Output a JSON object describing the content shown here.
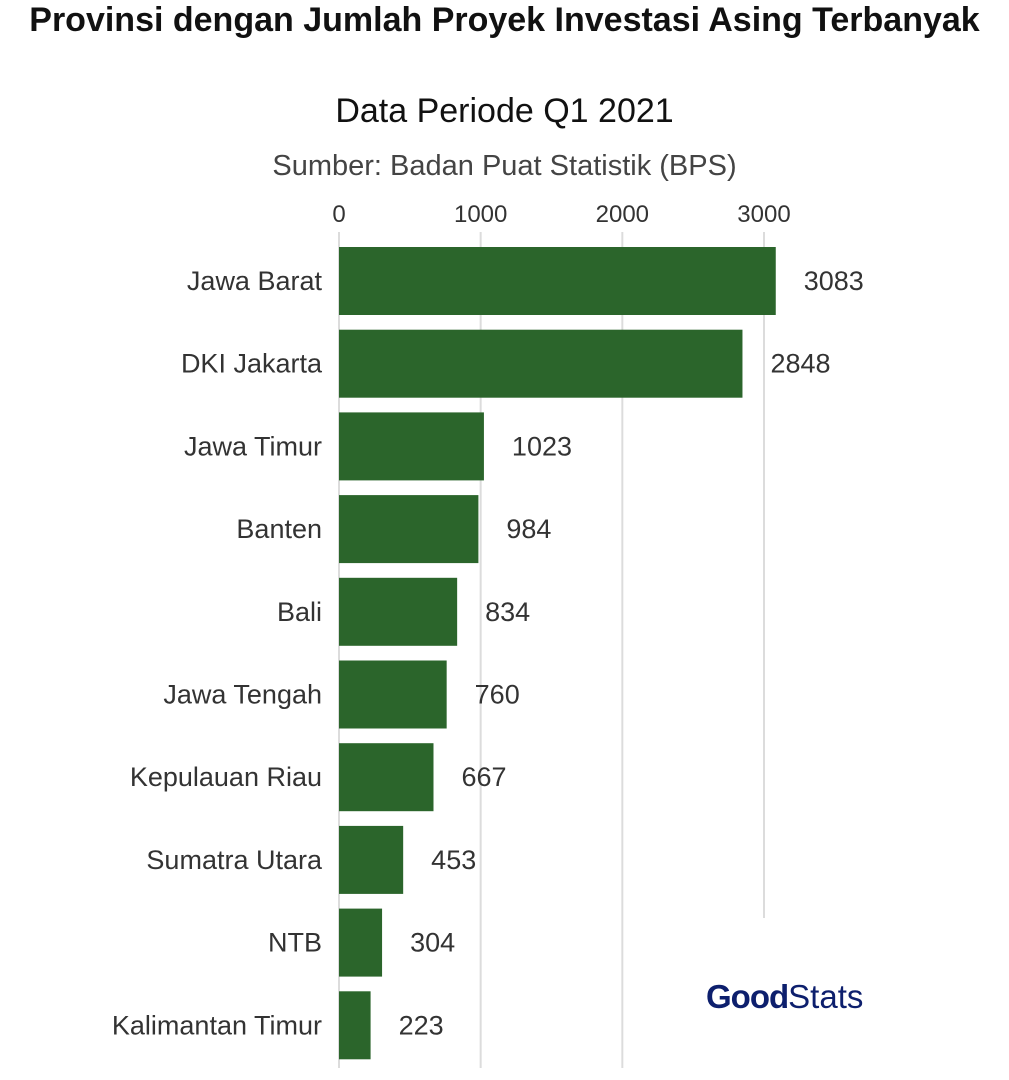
{
  "chart_data": {
    "type": "bar",
    "orientation": "horizontal",
    "title": "Provinsi dengan Jumlah Proyek Investasi Asing Terbanyak",
    "subtitle": "Data Periode Q1 2021",
    "source": "Sumber: Badan Puat Statistik (BPS)",
    "categories": [
      "Jawa Barat",
      "DKI Jakarta",
      "Jawa Timur",
      "Banten",
      "Bali",
      "Jawa Tengah",
      "Kepulauan Riau",
      "Sumatra Utara",
      "NTB",
      "Kalimantan Timur"
    ],
    "values": [
      3083,
      2848,
      1023,
      984,
      834,
      760,
      667,
      453,
      304,
      223
    ],
    "xticks": [
      0,
      1000,
      2000,
      3000
    ],
    "xlim": [
      0,
      3000
    ],
    "grid": true,
    "axis_position": "top",
    "bar_color": "#2b652b"
  },
  "logo": {
    "good": "Good",
    "stats": "Stats"
  }
}
